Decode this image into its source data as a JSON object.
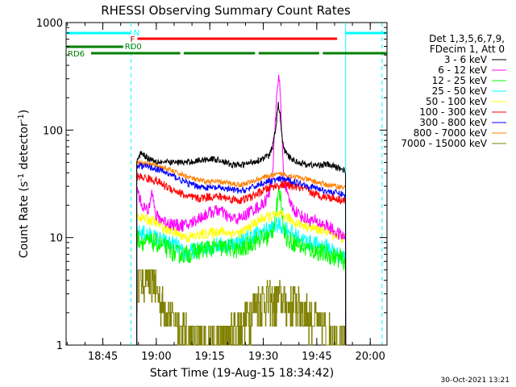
{
  "chart_data": {
    "type": "line",
    "title": "RHESSI Observing Summary Count Rates",
    "xlabel": "Start Time (19-Aug-15 18:34:42)",
    "ylabel_main": "Count Rate (s",
    "ylabel_sup": "-1",
    "ylabel_tail": " detector",
    "ylabel_close": ")",
    "yscale": "log",
    "ylim": [
      1,
      1000
    ],
    "xlim_minutes": [
      0,
      90
    ],
    "x_ticks": [
      {
        "minute": 10.3,
        "label": "18:45"
      },
      {
        "minute": 25.3,
        "label": "19:00"
      },
      {
        "minute": 40.3,
        "label": "19:15"
      },
      {
        "minute": 55.3,
        "label": "19:30"
      },
      {
        "minute": 70.3,
        "label": "19:45"
      },
      {
        "minute": 85.3,
        "label": "20:00"
      }
    ],
    "y_ticks": [
      {
        "value": 1,
        "label": "1"
      },
      {
        "value": 10,
        "label": "10"
      },
      {
        "value": 100,
        "label": "100"
      },
      {
        "value": 1000,
        "label": "1000"
      }
    ],
    "legend_header": [
      "Det 1,3,5,6,7,9,",
      "FDecim 1, Att 0"
    ],
    "series": [
      {
        "name": "3 - 6 keV",
        "color": "#000000",
        "x": [
          19.8,
          21,
          23,
          25,
          28,
          31,
          34,
          37,
          40,
          43,
          46,
          49,
          52,
          55,
          57,
          58,
          59,
          59.5,
          60,
          60.5,
          61,
          62,
          64,
          67,
          70,
          73,
          76,
          78.4
        ],
        "values": [
          50,
          62,
          55,
          52,
          50,
          50,
          50,
          52,
          54,
          53,
          48,
          47,
          50,
          54,
          58,
          72,
          120,
          175,
          140,
          88,
          68,
          58,
          52,
          48,
          47,
          48,
          45,
          42
        ]
      },
      {
        "name": "6 - 12 keV",
        "color": "#ff00ff",
        "x": [
          19.8,
          21,
          23,
          24,
          25,
          28,
          31,
          34,
          37,
          40,
          43,
          46,
          49,
          52,
          55,
          57,
          58,
          59,
          59.5,
          60,
          60.5,
          61,
          62,
          64,
          67,
          70,
          73,
          76,
          78.4
        ],
        "values": [
          30,
          21,
          17,
          30,
          16,
          14,
          13,
          13,
          15,
          17,
          18,
          15,
          15,
          18,
          20,
          25,
          45,
          180,
          330,
          240,
          90,
          40,
          24,
          18,
          15,
          14,
          13,
          11,
          10
        ]
      },
      {
        "name": "12 - 25 keV",
        "color": "#00ff00",
        "x": [
          19.8,
          22,
          25,
          28,
          31,
          34,
          37,
          40,
          43,
          46,
          49,
          52,
          55,
          57,
          58,
          59,
          60,
          61,
          62,
          64,
          67,
          70,
          73,
          76,
          78.4
        ],
        "values": [
          10,
          9,
          9,
          8,
          7,
          7,
          7.5,
          8,
          8,
          8,
          7.5,
          9,
          10,
          10,
          12,
          19,
          26,
          13,
          9.5,
          9,
          8,
          7.5,
          7,
          6.5,
          6
        ]
      },
      {
        "name": "25 - 50 keV",
        "color": "#00ffff",
        "x": [
          19.8,
          22,
          25,
          28,
          31,
          33,
          36,
          39,
          42,
          45,
          48,
          51,
          54,
          57,
          59,
          60,
          62,
          65,
          68,
          71,
          74,
          76,
          78.4
        ],
        "values": [
          11,
          11,
          10,
          9,
          8.5,
          7,
          7.5,
          8,
          8.5,
          8.5,
          9,
          10,
          11,
          12,
          13,
          13,
          12,
          10,
          9,
          8.5,
          8,
          7,
          6.5
        ]
      },
      {
        "name": "50 - 100 keV",
        "color": "#ffff00",
        "x": [
          19.8,
          22,
          25,
          28,
          31,
          34,
          37,
          40,
          43,
          46,
          49,
          52,
          55,
          58,
          61,
          64,
          67,
          70,
          73,
          76,
          78.4
        ],
        "values": [
          16,
          15,
          14,
          12,
          11,
          10,
          10.5,
          11,
          11.5,
          11,
          11,
          13,
          15,
          16,
          16,
          14,
          13,
          12,
          11.5,
          10.5,
          9.5
        ]
      },
      {
        "name": "100 - 300 keV",
        "color": "#ff0000",
        "x": [
          19.8,
          22,
          25,
          28,
          31,
          34,
          37,
          40,
          43,
          46,
          49,
          52,
          55,
          58,
          61,
          64,
          67,
          70,
          73,
          76,
          78.4
        ],
        "values": [
          37,
          36,
          34,
          30,
          27,
          24,
          23,
          24,
          24,
          23,
          22,
          24,
          27,
          30,
          31,
          30,
          28,
          25,
          24,
          23,
          22
        ]
      },
      {
        "name": "300 - 800 keV",
        "color": "#0000ff",
        "x": [
          19.8,
          22,
          25,
          28,
          31,
          34,
          37,
          40,
          43,
          46,
          49,
          52,
          55,
          58,
          61,
          64,
          67,
          70,
          73,
          76,
          78.4
        ],
        "values": [
          47,
          46,
          44,
          40,
          36,
          32,
          30,
          29,
          29,
          28,
          27,
          29,
          32,
          34,
          35,
          33,
          31,
          29,
          27,
          26,
          25
        ]
      },
      {
        "name": "800 - 7000 keV",
        "color": "#ff8000",
        "x": [
          19.8,
          22,
          25,
          28,
          31,
          34,
          37,
          40,
          43,
          46,
          49,
          52,
          55,
          58,
          61,
          64,
          67,
          70,
          73,
          76,
          78.4
        ],
        "values": [
          50,
          49,
          47,
          44,
          40,
          37,
          34,
          33,
          33,
          32,
          31,
          33,
          36,
          38,
          39,
          37,
          35,
          33,
          31,
          30,
          29
        ]
      },
      {
        "name": "7000 - 15000 keV",
        "color": "#808000",
        "x": [
          19.8,
          20.5,
          21.5,
          22.5,
          23.5,
          24.5,
          25.5,
          26.5,
          28,
          30,
          32,
          34,
          36,
          38,
          40,
          42,
          44,
          46,
          48,
          50,
          52,
          54,
          56,
          58,
          60,
          62,
          64,
          66,
          68,
          70,
          72,
          74,
          76,
          78.4
        ],
        "values": [
          3.5,
          4.8,
          4.2,
          5,
          3.8,
          4.5,
          3,
          2.6,
          2.2,
          1.8,
          1.5,
          1.3,
          1.2,
          1.1,
          1.2,
          1.1,
          1.2,
          1.3,
          1.5,
          1.7,
          2.2,
          2.6,
          2.8,
          2.5,
          2.8,
          2.4,
          2.6,
          2.3,
          2,
          1.7,
          1.4,
          1.3,
          1.2,
          1.1
        ]
      }
    ],
    "state_bars": [
      {
        "label": "N",
        "color": "#00ffff",
        "segments": [
          [
            0,
            18
          ],
          [
            78.4,
            90
          ]
        ]
      },
      {
        "label": "F",
        "color": "#ff0000",
        "segments": [
          [
            20,
            76
          ]
        ]
      },
      {
        "label": "RD0",
        "color": "#008000",
        "segments": [
          [
            0,
            16
          ]
        ]
      },
      {
        "label": "RD6",
        "color": "#008000",
        "segments": [
          [
            7,
            32
          ],
          [
            33,
            53
          ],
          [
            54,
            71
          ],
          [
            72,
            90
          ]
        ]
      }
    ],
    "vertical_lines": [
      {
        "minute": 18.2,
        "color": "#00ffff",
        "style": "dashed"
      },
      {
        "minute": 78.4,
        "color": "#00ffff",
        "style": "solid"
      },
      {
        "minute": 88.6,
        "color": "#00ffff",
        "style": "dashed"
      }
    ],
    "timestamp": "30-Oct-2021 13:21"
  }
}
